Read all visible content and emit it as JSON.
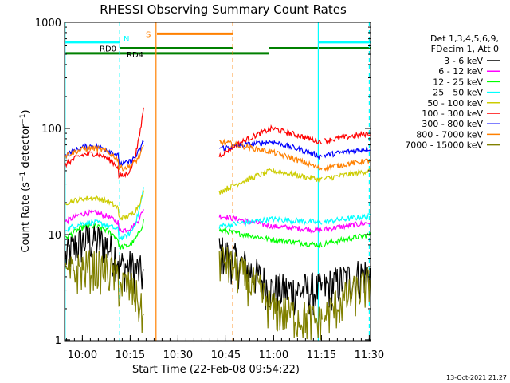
{
  "chart_data": {
    "type": "line",
    "title": "RHESSI Observing Summary Count Rates",
    "xlabel": "Start Time (22-Feb-08 09:54:22)",
    "ylabel": "Count Rate (s⁻¹ detector⁻¹)",
    "ylabel_main": "Count Rate (s",
    "ylabel_exp1": "−1",
    "ylabel_mid": " detector",
    "ylabel_exp2": "−1",
    "ylabel_end": ")",
    "yscale": "log",
    "ylim": [
      1,
      1000
    ],
    "xlim_minutes": [
      0,
      96
    ],
    "y_ticks": [
      {
        "value": 1,
        "label": "1"
      },
      {
        "value": 10,
        "label": "10"
      },
      {
        "value": 100,
        "label": "100"
      },
      {
        "value": 1000,
        "label": "1000"
      }
    ],
    "x_ticks": [
      {
        "minute": 5.6,
        "label": "10:00"
      },
      {
        "minute": 20.6,
        "label": "10:15"
      },
      {
        "minute": 35.6,
        "label": "10:30"
      },
      {
        "minute": 50.6,
        "label": "10:45"
      },
      {
        "minute": 65.6,
        "label": "11:00"
      },
      {
        "minute": 80.6,
        "label": "11:15"
      },
      {
        "minute": 95.6,
        "label": "11:30"
      }
    ],
    "legend_header": [
      "Det 1,3,4,5,6,9,",
      "FDecim 1, Att 0"
    ],
    "series": [
      {
        "name": "3 - 6 keV",
        "color": "#000000",
        "a": [
          6,
          9,
          6
        ],
        "b": [
          7,
          3,
          3,
          4.5
        ],
        "flare": 4
      },
      {
        "name": "6 - 12 keV",
        "color": "#ff00ff",
        "a": [
          13,
          16,
          13
        ],
        "b": [
          15,
          12,
          11,
          13
        ],
        "flare": 18
      },
      {
        "name": "12 - 25 keV",
        "color": "#00ff00",
        "a": [
          9,
          12,
          9
        ],
        "b": [
          11,
          9,
          8,
          10
        ],
        "flare": 14
      },
      {
        "name": "25 - 50 keV",
        "color": "#00ffff",
        "a": [
          11,
          13,
          11
        ],
        "b": [
          12,
          14,
          13,
          15
        ],
        "flare": 30
      },
      {
        "name": "50 - 100 keV",
        "color": "#cccc00",
        "a": [
          20,
          22,
          17
        ],
        "b": [
          25,
          40,
          33,
          40
        ],
        "flare": 26
      },
      {
        "name": "100 - 300 keV",
        "color": "#ff0000",
        "a": [
          45,
          58,
          42
        ],
        "b": [
          55,
          100,
          75,
          90
        ],
        "flare": 180
      },
      {
        "name": "300 - 800 keV",
        "color": "#0000ff",
        "a": [
          55,
          68,
          55
        ],
        "b": [
          65,
          75,
          55,
          65
        ],
        "flare": 80
      },
      {
        "name": "800 - 7000 keV",
        "color": "#ff8000",
        "a": [
          55,
          65,
          50
        ],
        "b": [
          75,
          60,
          42,
          50
        ],
        "flare": 70
      },
      {
        "name": "7000 - 15000 keV",
        "color": "#808000",
        "a": [
          4,
          5,
          4
        ],
        "b": [
          6,
          2,
          1.5,
          3.5
        ],
        "flare": 1.5
      }
    ],
    "data_gaps_minutes": [
      [
        25,
        48.5
      ],
      [
        80.9,
        81.5
      ]
    ],
    "flag_bars": [
      {
        "label": "N",
        "color": "#00ffff",
        "segments": [
          [
            0,
            17.5
          ],
          [
            79.5,
            96
          ]
        ],
        "value": 650
      },
      {
        "label": "S",
        "color": "#ff8000",
        "segments": [
          [
            29,
            53
          ]
        ],
        "value": 780
      },
      {
        "label": "RD0",
        "color": "#008000",
        "segments": [
          [
            17.5,
            53
          ],
          [
            64,
            96
          ]
        ],
        "value": 570
      },
      {
        "label": "RD4",
        "color": "#008000",
        "segments": [
          [
            0,
            53
          ],
          [
            53,
            64
          ]
        ],
        "value": 510
      }
    ],
    "vlines": [
      {
        "minute": 0.2,
        "color": "#00ffff",
        "style": "solid"
      },
      {
        "minute": 17.3,
        "color": "#00ffff",
        "style": "dashed"
      },
      {
        "minute": 28.7,
        "color": "#ff8000",
        "style": "solid"
      },
      {
        "minute": 52.8,
        "color": "#ff8000",
        "style": "dashed"
      },
      {
        "minute": 79.6,
        "color": "#00ffff",
        "style": "solid"
      },
      {
        "minute": 95.6,
        "color": "#00ffff",
        "style": "dashed"
      }
    ],
    "footer_date": "13-Oct-2021 21:27"
  }
}
